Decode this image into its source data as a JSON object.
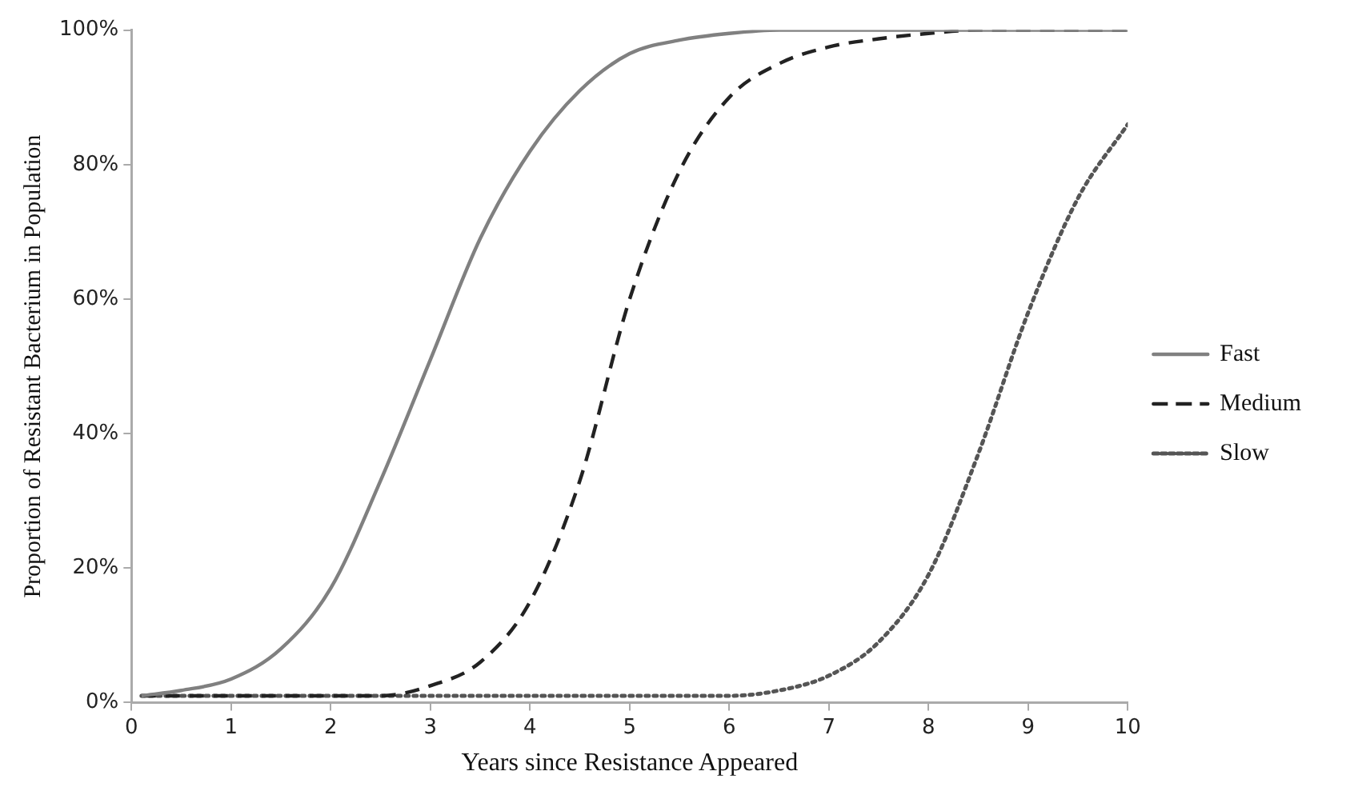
{
  "chart_data": {
    "type": "line",
    "xlabel": "Years since Resistance Appeared",
    "ylabel": "Proportion of Resistant Bacterium in Population",
    "x": [
      0.1,
      0.5,
      1,
      1.5,
      2,
      2.5,
      3,
      3.5,
      4,
      4.5,
      5,
      5.5,
      6,
      6.5,
      7,
      7.5,
      8,
      8.5,
      9,
      9.5,
      10
    ],
    "series": [
      {
        "name": "Fast",
        "color": "#808080",
        "line_style": "solid",
        "values": [
          1,
          1.8,
          3.5,
          8,
          17,
          33,
          51,
          69,
          82,
          91,
          96.5,
          98.5,
          99.5,
          100,
          100,
          100,
          100,
          100,
          100,
          100,
          100
        ]
      },
      {
        "name": "Medium",
        "color": "#222222",
        "line_style": "dashed",
        "values": [
          1,
          1,
          1,
          1,
          1,
          1,
          2.5,
          6,
          15,
          33,
          60,
          79,
          90,
          95,
          97.5,
          98.7,
          99.5,
          100,
          100,
          100,
          100
        ]
      },
      {
        "name": "Slow",
        "color": "#555555",
        "line_style": "dotted",
        "values": [
          1,
          1,
          1,
          1,
          1,
          1,
          1,
          1,
          1,
          1,
          1,
          1,
          1,
          1.8,
          4,
          9,
          19,
          37,
          58,
          75,
          86
        ]
      }
    ],
    "xlim": [
      0,
      10
    ],
    "xticks": [
      0,
      1,
      2,
      3,
      4,
      5,
      6,
      7,
      8,
      9,
      10
    ],
    "ylim": [
      0,
      100
    ],
    "yticks": [
      {
        "value": 0,
        "label": "0%"
      },
      {
        "value": 20,
        "label": "20%"
      },
      {
        "value": 40,
        "label": "40%"
      },
      {
        "value": 60,
        "label": "60%"
      },
      {
        "value": 80,
        "label": "80%"
      },
      {
        "value": 100,
        "label": "100%"
      }
    ],
    "grid": false,
    "legend": "right",
    "marker": "none"
  }
}
